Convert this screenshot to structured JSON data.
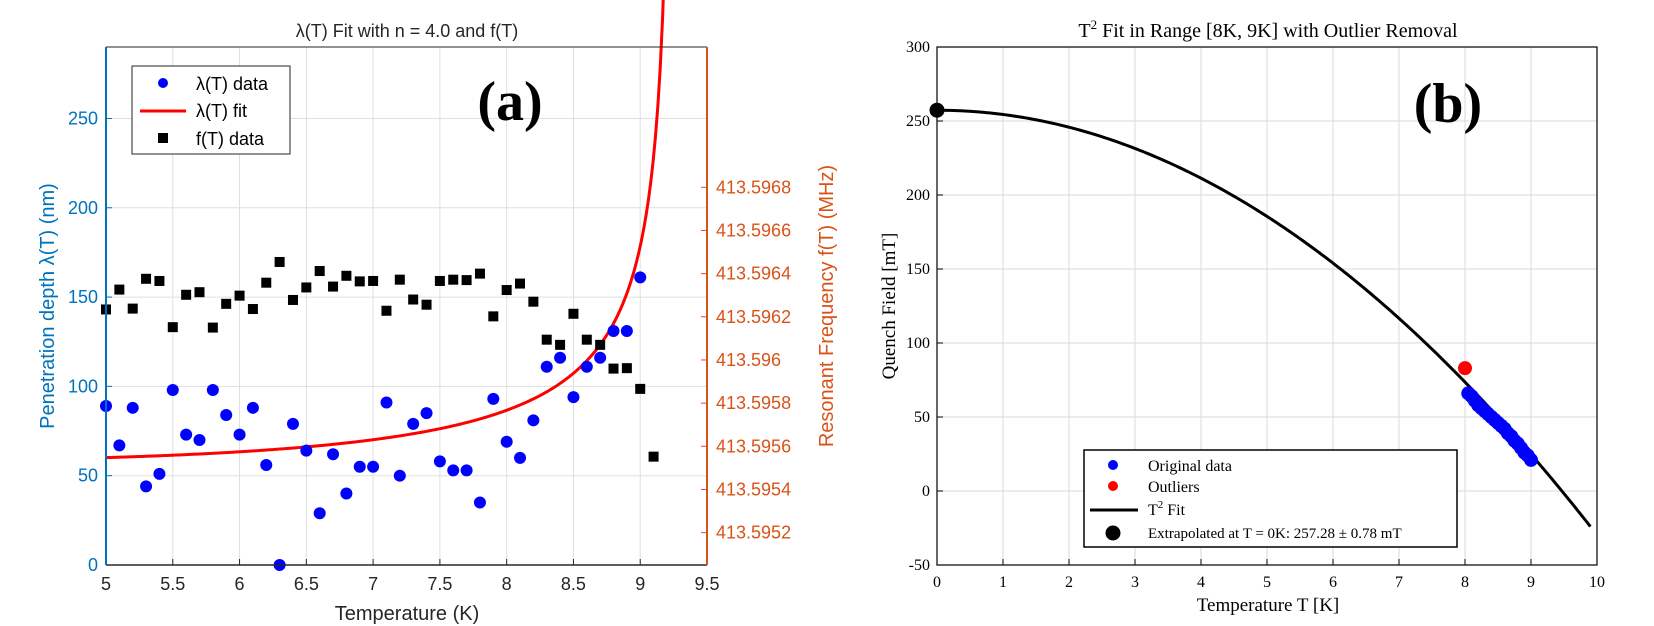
{
  "chart_data": [
    {
      "type": "scatter+line",
      "panel_label": "(a)",
      "title": "λ(T) Fit with n = 4.0 and f(T)",
      "xlabel": "Temperature (K)",
      "ylabel_left": "Penetration depth λ(T) (nm)",
      "ylabel_right": "Resonant Frequency f(T) (MHz)",
      "xlim": [
        5,
        9.5
      ],
      "ylim_left": [
        0,
        290
      ],
      "ylim_right": [
        413.59505,
        413.59745
      ],
      "x_ticks": [
        "5",
        "5.5",
        "6",
        "6.5",
        "7",
        "7.5",
        "8",
        "8.5",
        "9",
        "9.5"
      ],
      "y_ticks_left": [
        "0",
        "50",
        "100",
        "150",
        "200",
        "250"
      ],
      "y_ticks_right": [
        "413.5952",
        "413.5954",
        "413.5956",
        "413.5958",
        "413.596",
        "413.5962",
        "413.5964",
        "413.5966",
        "413.5968"
      ],
      "legend": [
        {
          "label": "λ(T) data",
          "marker": "circle",
          "color": "#0000ff"
        },
        {
          "label": "λ(T) fit",
          "marker": "line",
          "color": "#ff0000"
        },
        {
          "label": "f(T) data",
          "marker": "square",
          "color": "#000000"
        }
      ],
      "series": [
        {
          "name": "λ(T) data",
          "axis": "left",
          "x": [
            5.0,
            5.1,
            5.2,
            5.3,
            5.4,
            5.5,
            5.6,
            5.7,
            5.8,
            5.9,
            6.0,
            6.1,
            6.2,
            6.3,
            6.4,
            6.5,
            6.6,
            6.7,
            6.8,
            6.9,
            7.0,
            7.1,
            7.2,
            7.3,
            7.4,
            7.5,
            7.6,
            7.7,
            7.8,
            7.9,
            8.0,
            8.1,
            8.2,
            8.3,
            8.4,
            8.5,
            8.6,
            8.7,
            8.8,
            8.9,
            9.0
          ],
          "y": [
            89,
            67,
            88,
            44,
            51,
            98,
            73,
            70,
            98,
            84,
            73,
            88,
            56,
            0,
            79,
            64,
            29,
            62,
            40,
            55,
            55,
            91,
            50,
            79,
            85,
            58,
            53,
            53,
            35,
            93,
            69,
            60,
            81,
            111,
            116,
            94,
            111,
            116,
            131,
            131,
            161
          ]
        },
        {
          "name": "λ(T) fit",
          "axis": "left",
          "model": "λ0 / sqrt(1 - (T/Tc)^4)",
          "lambda0": 57.5,
          "Tc": 9.25,
          "x_range": [
            5.0,
            9.22
          ]
        },
        {
          "name": "f(T) data",
          "axis": "right",
          "x": [
            5.0,
            5.1,
            5.2,
            5.3,
            5.4,
            5.5,
            5.6,
            5.7,
            5.8,
            5.9,
            6.0,
            6.1,
            6.2,
            6.3,
            6.4,
            6.5,
            6.6,
            6.7,
            6.8,
            6.9,
            7.0,
            7.1,
            7.2,
            7.3,
            7.4,
            7.5,
            7.6,
            7.7,
            7.8,
            7.9,
            8.0,
            8.1,
            8.2,
            8.3,
            8.4,
            8.5,
            8.6,
            8.7,
            8.8,
            8.9,
            9.0,
            9.1
          ],
          "y": [
            413.596234,
            413.596326,
            413.596238,
            413.596376,
            413.596366,
            413.596152,
            413.596302,
            413.596314,
            413.59615,
            413.59626,
            413.596298,
            413.596236,
            413.596358,
            413.596454,
            413.596278,
            413.596336,
            413.596412,
            413.59634,
            413.59639,
            413.596364,
            413.596366,
            413.596228,
            413.596372,
            413.59628,
            413.596256,
            413.596366,
            413.596372,
            413.59637,
            413.5964,
            413.596202,
            413.596324,
            413.596354,
            413.59627,
            413.596094,
            413.59607,
            413.596214,
            413.596094,
            413.59607,
            413.59596,
            413.595962,
            413.595866,
            413.595552
          ]
        }
      ]
    },
    {
      "type": "scatter+line",
      "panel_label": "(b)",
      "title_prefix": "T",
      "title_sup": "2",
      "title_suffix": " Fit in Range [8K, 9K] with Outlier Removal",
      "xlabel": "Temperature T [K]",
      "ylabel": "Quench Field [mT]",
      "xlim": [
        0,
        10
      ],
      "ylim": [
        -50,
        300
      ],
      "x_ticks": [
        "0",
        "1",
        "2",
        "3",
        "4",
        "5",
        "6",
        "7",
        "8",
        "9",
        "10"
      ],
      "y_ticks": [
        "-50",
        "0",
        "50",
        "100",
        "150",
        "200",
        "250",
        "300"
      ],
      "legend": [
        {
          "label": "Original data",
          "marker": "circle",
          "color": "#0000ff"
        },
        {
          "label": "Outliers",
          "marker": "circle",
          "color": "#ff0000"
        },
        {
          "label_prefix": "T",
          "label_sup": "2",
          "label_suffix": " Fit",
          "marker": "line",
          "color": "#000000"
        },
        {
          "label": "Extrapolated at T = 0K: 257.28 ± 0.78 mT",
          "marker": "circle",
          "color": "#000000"
        }
      ],
      "series": [
        {
          "name": "Original data",
          "x": [
            8.05,
            8.1,
            8.15,
            8.2,
            8.25,
            8.3,
            8.35,
            8.4,
            8.45,
            8.5,
            8.55,
            8.6,
            8.65,
            8.7,
            8.75,
            8.8,
            8.85,
            8.9,
            8.95,
            9.0
          ],
          "y": [
            66,
            64,
            61,
            58,
            56,
            54,
            52,
            50,
            48,
            46,
            44,
            42,
            39,
            37,
            34,
            32,
            29,
            26,
            24,
            21
          ]
        },
        {
          "name": "Outliers",
          "x": [
            8.0
          ],
          "y": [
            83
          ]
        },
        {
          "name": "T2 Fit",
          "model": "a - b*T^2",
          "a": 257.28,
          "b": 2.87,
          "x_range": [
            0,
            9.9
          ]
        },
        {
          "name": "Extrapolated",
          "x": [
            0
          ],
          "y": [
            257.28
          ]
        }
      ]
    }
  ]
}
